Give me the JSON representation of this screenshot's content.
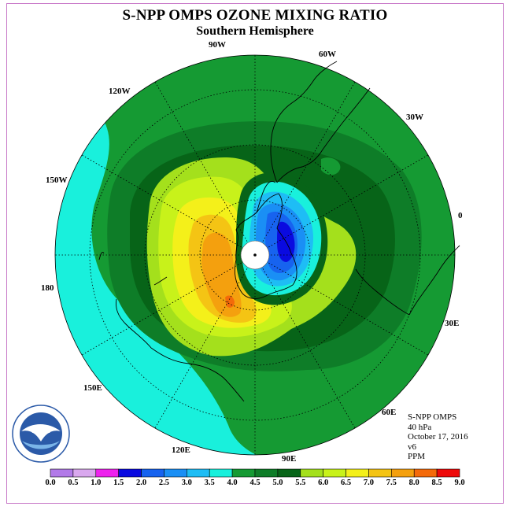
{
  "title": "S-NPP OMPS OZONE MIXING RATIO",
  "subtitle": "Southern Hemisphere",
  "longitude_labels": [
    "90W",
    "60W",
    "30W",
    "0",
    "30E",
    "60E",
    "90E",
    "120E",
    "150E",
    "180",
    "150W",
    "120W"
  ],
  "info": {
    "instrument": "S-NPP OMPS",
    "level": "40 hPa",
    "date": "October 17, 2016",
    "version": "v6",
    "units": "PPM"
  },
  "logo": {
    "text": "NOAA",
    "ring_text": "NATIONAL OCEANIC AND ATMOSPHERIC ADMINISTRATION · U.S. DEPARTMENT OF COMMERCE"
  },
  "colorbar": {
    "ticks": [
      "0.0",
      "0.5",
      "1.0",
      "1.5",
      "2.0",
      "2.5",
      "3.0",
      "3.5",
      "4.0",
      "4.5",
      "5.0",
      "5.5",
      "6.0",
      "6.5",
      "7.0",
      "7.5",
      "8.0",
      "8.5",
      "9.0"
    ],
    "colors": [
      "#b27ae8",
      "#d9a8ee",
      "#ee22ee",
      "#0a0ae0",
      "#1763ef",
      "#1a8ff5",
      "#1ebdf5",
      "#19f0dc",
      "#159a33",
      "#0e7d28",
      "#076418",
      "#a4e01c",
      "#c8f21a",
      "#f4f01a",
      "#f4c414",
      "#f4a00e",
      "#f46a0a",
      "#ee0a0a",
      "#8c5a3a"
    ]
  },
  "map": {
    "ocean_color": "#19f0dc",
    "band_colors": [
      "#19f0dc",
      "#159a33",
      "#0e7d28",
      "#076418",
      "#a4e01c",
      "#c8f21a",
      "#f4f01a",
      "#f4c414",
      "#f4a00e",
      "#f46a0a"
    ],
    "hole_colors": [
      "#1ebdf5",
      "#1a8ff5",
      "#1763ef",
      "#0a0ae0"
    ]
  }
}
